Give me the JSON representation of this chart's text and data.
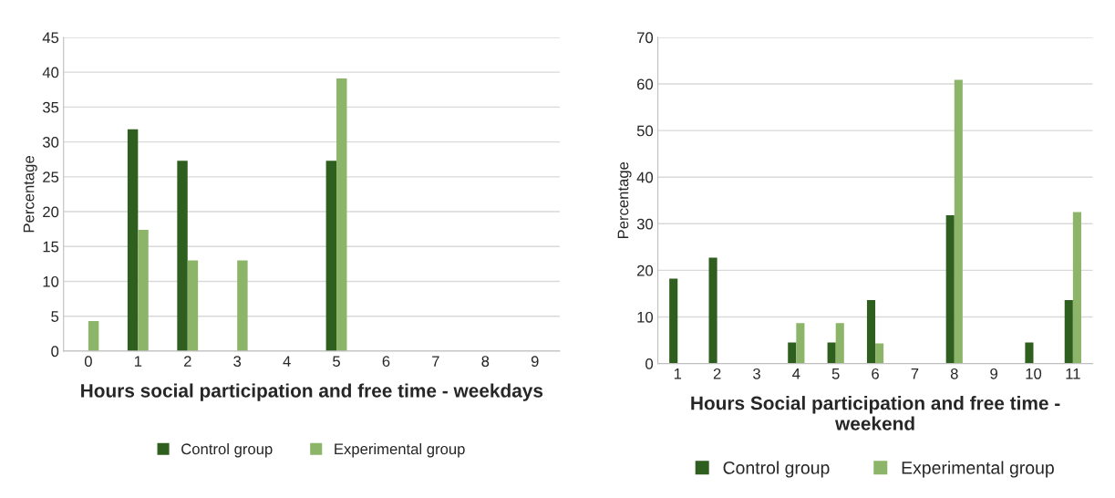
{
  "chart_data": [
    {
      "type": "bar",
      "xlabel": "Hours social participation and free time - weekdays",
      "ylabel": "Percentage",
      "categories": [
        "0",
        "1",
        "2",
        "3",
        "4",
        "5",
        "6",
        "7",
        "8",
        "9"
      ],
      "series": [
        {
          "name": "Control group",
          "color": "#2f5f1f",
          "values": [
            null,
            31.8,
            27.3,
            null,
            null,
            27.3,
            null,
            null,
            null,
            null
          ]
        },
        {
          "name": "Experimental group",
          "color": "#8db56a",
          "values": [
            4.3,
            17.4,
            13.0,
            13.0,
            null,
            39.1,
            null,
            null,
            null,
            null
          ]
        }
      ],
      "ylim": [
        0,
        45
      ],
      "yticks": [
        0,
        5,
        10,
        15,
        20,
        25,
        30,
        35,
        40,
        45
      ],
      "grid": "y",
      "legend": "bottom"
    },
    {
      "type": "bar",
      "xlabel": "Hours Social participation and free time - weekend",
      "ylabel": "Percentage",
      "categories": [
        "1",
        "2",
        "3",
        "4",
        "5",
        "6",
        "7",
        "8",
        "9",
        "10",
        "11"
      ],
      "series": [
        {
          "name": "Control group",
          "color": "#2f5f1f",
          "values": [
            18.2,
            22.7,
            null,
            4.5,
            4.5,
            13.6,
            null,
            31.8,
            null,
            4.5,
            13.6
          ]
        },
        {
          "name": "Experimental group",
          "color": "#8db56a",
          "values": [
            null,
            null,
            null,
            8.7,
            8.7,
            4.3,
            null,
            60.9,
            null,
            null,
            32.5
          ]
        }
      ],
      "ylim": [
        0,
        70
      ],
      "yticks": [
        0,
        10,
        20,
        30,
        40,
        50,
        60,
        70
      ],
      "grid": "y",
      "legend": "bottom"
    }
  ]
}
